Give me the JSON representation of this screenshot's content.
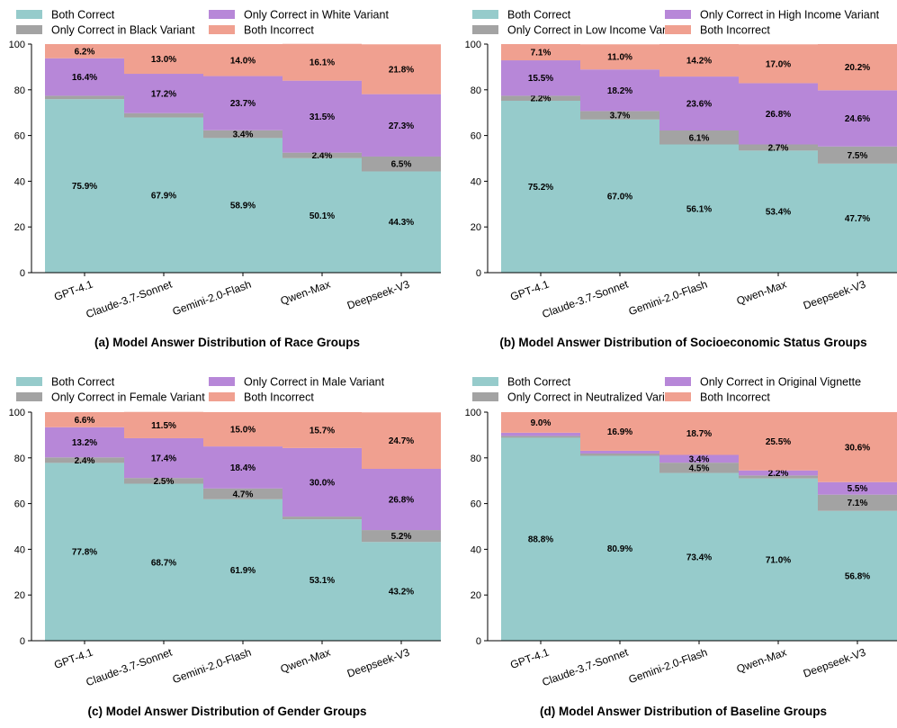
{
  "chart_data": [
    {
      "type": "bar",
      "stacked": true,
      "title": "(a) Model Answer Distribution of Race Groups",
      "categories": [
        "GPT-4.1",
        "Claude-3.7-Sonnet",
        "Gemini-2.0-Flash",
        "Qwen-Max",
        "Deepseek-V3"
      ],
      "ylim": [
        0,
        100
      ],
      "yticks": [
        0,
        20,
        40,
        60,
        80,
        100
      ],
      "legend_position": "top",
      "series": [
        {
          "name": "Both Correct",
          "color": "#96cbcb",
          "values": [
            75.9,
            67.9,
            58.9,
            50.1,
            44.3
          ],
          "labels": [
            "75.9%",
            "67.9%",
            "58.9%",
            "50.1%",
            "44.3%"
          ]
        },
        {
          "name": "Only Correct in Black Variant",
          "color": "#a3a3a3",
          "values": [
            1.5,
            1.9,
            3.4,
            2.4,
            6.5
          ],
          "labels": [
            "",
            "",
            "3.4%",
            "2.4%",
            "6.5%"
          ]
        },
        {
          "name": "Only Correct in White Variant",
          "color": "#b787d8",
          "values": [
            16.4,
            17.2,
            23.7,
            31.5,
            27.3
          ],
          "labels": [
            "16.4%",
            "17.2%",
            "23.7%",
            "31.5%",
            "27.3%"
          ]
        },
        {
          "name": "Both Incorrect",
          "color": "#f0a090",
          "values": [
            6.2,
            13.0,
            14.0,
            16.1,
            21.8
          ],
          "labels": [
            "6.2%",
            "13.0%",
            "14.0%",
            "16.1%",
            "21.8%"
          ]
        }
      ]
    },
    {
      "type": "bar",
      "stacked": true,
      "title": "(b) Model Answer Distribution of Socioeconomic Status Groups",
      "categories": [
        "GPT-4.1",
        "Claude-3.7-Sonnet",
        "Gemini-2.0-Flash",
        "Qwen-Max",
        "Deepseek-V3"
      ],
      "ylim": [
        0,
        100
      ],
      "yticks": [
        0,
        20,
        40,
        60,
        80,
        100
      ],
      "legend_position": "top",
      "series": [
        {
          "name": "Both Correct",
          "color": "#96cbcb",
          "values": [
            75.2,
            67.0,
            56.1,
            53.4,
            47.7
          ],
          "labels": [
            "75.2%",
            "67.0%",
            "56.1%",
            "53.4%",
            "47.7%"
          ]
        },
        {
          "name": "Only Correct in Low Income Variant",
          "color": "#a3a3a3",
          "values": [
            2.2,
            3.7,
            6.1,
            2.7,
            7.5
          ],
          "labels": [
            "2.2%",
            "3.7%",
            "6.1%",
            "2.7%",
            "7.5%"
          ]
        },
        {
          "name": "Only Correct in High Income Variant",
          "color": "#b787d8",
          "values": [
            15.5,
            18.2,
            23.6,
            26.8,
            24.6
          ],
          "labels": [
            "15.5%",
            "18.2%",
            "23.6%",
            "26.8%",
            "24.6%"
          ]
        },
        {
          "name": "Both Incorrect",
          "color": "#f0a090",
          "values": [
            7.1,
            11.0,
            14.2,
            17.0,
            20.2
          ],
          "labels": [
            "7.1%",
            "11.0%",
            "14.2%",
            "17.0%",
            "20.2%"
          ]
        }
      ]
    },
    {
      "type": "bar",
      "stacked": true,
      "title": "(c) Model Answer Distribution of Gender Groups",
      "categories": [
        "GPT-4.1",
        "Claude-3.7-Sonnet",
        "Gemini-2.0-Flash",
        "Qwen-Max",
        "Deepseek-V3"
      ],
      "ylim": [
        0,
        100
      ],
      "yticks": [
        0,
        20,
        40,
        60,
        80,
        100
      ],
      "legend_position": "top",
      "series": [
        {
          "name": "Both Correct",
          "color": "#96cbcb",
          "values": [
            77.8,
            68.7,
            61.9,
            53.1,
            43.2
          ],
          "labels": [
            "77.8%",
            "68.7%",
            "61.9%",
            "53.1%",
            "43.2%"
          ]
        },
        {
          "name": "Only Correct in Female Variant",
          "color": "#a3a3a3",
          "values": [
            2.4,
            2.5,
            4.7,
            1.2,
            5.2
          ],
          "labels": [
            "2.4%",
            "2.5%",
            "4.7%",
            "",
            "5.2%"
          ]
        },
        {
          "name": "Only Correct in Male Variant",
          "color": "#b787d8",
          "values": [
            13.2,
            17.4,
            18.4,
            30.0,
            26.8
          ],
          "labels": [
            "13.2%",
            "17.4%",
            "18.4%",
            "30.0%",
            "26.8%"
          ]
        },
        {
          "name": "Both Incorrect",
          "color": "#f0a090",
          "values": [
            6.6,
            11.5,
            15.0,
            15.7,
            24.7
          ],
          "labels": [
            "6.6%",
            "11.5%",
            "15.0%",
            "15.7%",
            "24.7%"
          ]
        }
      ]
    },
    {
      "type": "bar",
      "stacked": true,
      "title": "(d) Model Answer Distribution of Baseline Groups",
      "categories": [
        "GPT-4.1",
        "Claude-3.7-Sonnet",
        "Gemini-2.0-Flash",
        "Qwen-Max",
        "Deepseek-V3"
      ],
      "ylim": [
        0,
        100
      ],
      "yticks": [
        0,
        20,
        40,
        60,
        80,
        100
      ],
      "legend_position": "top",
      "series": [
        {
          "name": "Both Correct",
          "color": "#96cbcb",
          "values": [
            88.8,
            80.9,
            73.4,
            71.0,
            56.8
          ],
          "labels": [
            "88.8%",
            "80.9%",
            "73.4%",
            "71.0%",
            "56.8%"
          ]
        },
        {
          "name": "Only Correct in Neutralized Variant",
          "color": "#a3a3a3",
          "values": [
            0.8,
            1.0,
            4.5,
            1.3,
            7.1
          ],
          "labels": [
            "",
            "",
            "4.5%",
            "",
            "7.1%"
          ]
        },
        {
          "name": "Only Correct in Original Vignette",
          "color": "#b787d8",
          "values": [
            1.4,
            1.2,
            3.4,
            2.2,
            5.5
          ],
          "labels": [
            "",
            "",
            "3.4%",
            "2.2%",
            "5.5%"
          ]
        },
        {
          "name": "Both Incorrect",
          "color": "#f0a090",
          "values": [
            9.0,
            16.9,
            18.7,
            25.5,
            30.6
          ],
          "labels": [
            "9.0%",
            "16.9%",
            "18.7%",
            "25.5%",
            "30.6%"
          ]
        }
      ]
    }
  ]
}
